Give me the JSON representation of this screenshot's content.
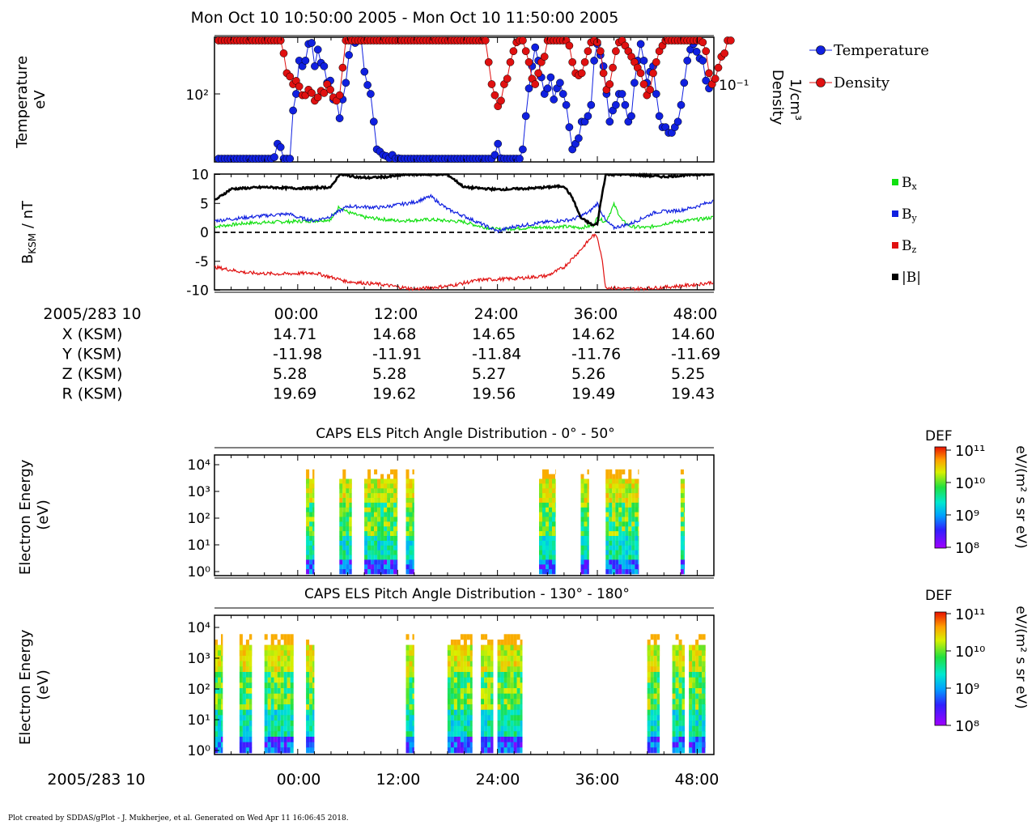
{
  "title": "Mon Oct 10 10:50:00 2005 - Mon Oct 10 11:50:00 2005",
  "footer": "Plot created by SDDAS/gPlot - J. Mukherjee, et al.  Generated on Wed Apr 11 16:06:45 2018.",
  "time_ticks": [
    "00:00",
    "12:00",
    "24:00",
    "36:00",
    "48:00"
  ],
  "ephemeris": {
    "header": "2005/283 10",
    "rows": [
      {
        "label": "X (KSM)",
        "values": [
          "14.71",
          "14.68",
          "14.65",
          "14.62",
          "14.60"
        ]
      },
      {
        "label": "Y (KSM)",
        "values": [
          "-11.98",
          "-11.91",
          "-11.84",
          "-11.76",
          "-11.69"
        ]
      },
      {
        "label": "Z (KSM)",
        "values": [
          "5.28",
          "5.28",
          "5.27",
          "5.26",
          "5.25"
        ]
      },
      {
        "label": "R (KSM)",
        "values": [
          "19.69",
          "19.62",
          "19.56",
          "19.49",
          "19.43"
        ]
      }
    ]
  },
  "bottom_axis_label": "2005/283 10",
  "colors": {
    "temperature": "#1020e0",
    "density": "#e01010",
    "bx": "#10e010",
    "by": "#1020e0",
    "bz": "#e01010",
    "btot": "#000000"
  },
  "chart_data": [
    {
      "type": "scatter",
      "ylabel": [
        "Temperature",
        "eV"
      ],
      "ylabel_right": [
        "Density",
        "1/cm³"
      ],
      "y_tick_left": "10²",
      "y_tick_right": "10⁻¹",
      "legend": [
        "Temperature",
        "Density"
      ],
      "x_range_min": [
        -10,
        50
      ],
      "series": [
        {
          "name": "Temperature",
          "log_values": [
            1.2,
            1.17,
            1.17,
            1.18,
            1.2,
            1.2,
            1.18,
            1.21,
            1.2,
            1.19,
            1.2,
            1.2,
            1.21,
            1.2,
            1.23,
            1.24,
            1.25,
            1.26,
            1.43,
            1.55,
            1.52,
            1.38,
            1.22,
            1.3,
            1.85,
            2.0,
            2.3,
            2.25,
            2.3,
            2.45,
            2.46,
            2.25,
            2.4,
            2.28,
            2.25,
            2.1,
            2.12,
            1.95,
            1.95,
            1.78,
            1.95,
            2.1,
            2.35,
            2.5,
            2.46,
            2.5,
            2.5,
            2.2,
            2.08,
            2.0,
            1.75,
            1.5,
            1.48,
            1.45,
            1.44,
            1.42,
            1.45,
            1.41,
            1.42,
            1.32,
            1.23,
            1.21,
            1.22,
            1.22,
            1.25,
            1.26,
            1.24,
            1.27,
            1.26,
            1.28,
            1.27,
            1.3,
            1.29,
            1.28,
            1.29,
            1.28,
            1.27,
            1.28,
            1.27,
            1.28,
            1.31,
            1.35,
            1.36,
            1.38,
            1.33,
            1.31,
            1.25,
            1.22,
            1.32,
            1.45,
            1.55,
            1.42,
            1.38,
            1.37,
            1.37,
            1.37,
            1.37,
            1.4,
            1.5,
            1.8,
            2.05,
            2.25,
            2.42,
            2.3,
            2.15,
            2.0,
            2.05,
            2.15,
            1.95,
            2.05,
            2.1,
            2.0,
            1.9,
            1.7,
            1.5,
            1.55,
            1.6,
            1.75,
            1.75,
            1.8,
            1.9,
            2.3,
            2.45,
            2.35,
            2.25,
            2.0,
            1.75,
            1.85,
            1.9,
            2.0,
            2.0,
            1.9,
            1.75,
            1.8,
            2.1,
            2.3,
            2.45,
            2.3,
            2.1,
            2.2,
            2.25,
            2.0,
            1.8,
            1.7,
            1.7,
            1.65,
            1.65,
            1.7,
            1.75,
            1.9,
            2.1,
            2.3,
            2.4,
            2.45,
            2.38,
            2.32,
            2.3,
            2.12,
            2.05
          ]
        },
        {
          "name": "Density",
          "log_values": [
            -0.2,
            -0.19,
            -0.2,
            -0.2,
            -0.21,
            -0.2,
            -0.2,
            -0.19,
            -0.21,
            -0.2,
            -0.18,
            -0.2,
            -0.19,
            -0.2,
            -0.21,
            -0.2,
            -0.22,
            -0.23,
            -0.24,
            -0.3,
            -0.46,
            -0.72,
            -0.9,
            -0.93,
            -1.0,
            -0.97,
            -1.02,
            -1.1,
            -1.1,
            -1.05,
            -1.08,
            -1.15,
            -1.12,
            -1.06,
            -1.08,
            -1.0,
            -1.05,
            -1.12,
            -1.15,
            -1.1,
            -0.85,
            -0.6,
            -0.5,
            -0.45,
            -0.38,
            -0.4,
            -0.3,
            -0.27,
            -0.3,
            -0.22,
            -0.21,
            -0.2,
            -0.21,
            -0.22,
            -0.21,
            -0.22,
            -0.23,
            -0.22,
            -0.21,
            -0.2,
            -0.23,
            -0.26,
            -0.24,
            -0.21,
            -0.2,
            -0.19,
            -0.2,
            -0.22,
            -0.2,
            -0.21,
            -0.22,
            -0.2,
            -0.18,
            -0.16,
            -0.15,
            -0.14,
            -0.13,
            -0.14,
            -0.15,
            -0.14,
            -0.12,
            -0.11,
            -0.13,
            -0.15,
            -0.2,
            -0.4,
            -0.6,
            -0.8,
            -1.0,
            -1.1,
            -1.2,
            -1.15,
            -1.0,
            -0.95,
            -0.8,
            -0.7,
            -0.62,
            -0.55,
            -0.6,
            -0.7,
            -0.8,
            -0.95,
            -1.0,
            -0.9,
            -0.8,
            -0.75,
            -0.6,
            -0.55,
            -0.52,
            -0.5,
            -0.5,
            -0.55,
            -0.58,
            -0.65,
            -0.8,
            -0.9,
            -0.92,
            -0.9,
            -0.8,
            -0.7,
            -0.62,
            -0.6,
            -0.62,
            -0.7,
            -0.9,
            -1.05,
            -1.0,
            -0.85,
            -0.7,
            -0.62,
            -0.6,
            -0.65,
            -0.7,
            -0.75,
            -0.8,
            -0.85,
            -0.9,
            -1.0,
            -1.1,
            -1.05,
            -0.9,
            -0.8,
            -0.7,
            -0.65,
            -0.6,
            -0.55,
            -0.5,
            -0.45,
            -0.4,
            -0.38,
            -0.38,
            -0.36,
            -0.35,
            -0.38,
            -0.42,
            -0.5,
            -0.62,
            -0.7,
            -0.9,
            -1.0,
            -0.95,
            -0.85,
            -0.75,
            -0.72,
            -0.6,
            -0.55
          ]
        }
      ]
    },
    {
      "type": "line",
      "ylabel": "B_KSM / nT",
      "ylim": [
        -10,
        10
      ],
      "yticks": [
        "10",
        "5",
        "0",
        "-5",
        "-10"
      ],
      "legend": [
        "Bx",
        "By",
        "Bz",
        "|B|"
      ],
      "series": [
        {
          "name": "Bx",
          "knots": [
            [
              -10,
              1.0
            ],
            [
              -6,
              1.6
            ],
            [
              -2,
              1.8
            ],
            [
              2,
              2.0
            ],
            [
              4,
              2.2
            ],
            [
              5,
              4.5
            ],
            [
              6,
              3.5
            ],
            [
              8,
              2.6
            ],
            [
              12,
              2.0
            ],
            [
              16,
              2.2
            ],
            [
              20,
              1.8
            ],
            [
              22,
              1.0
            ],
            [
              24,
              0.5
            ],
            [
              28,
              0.8
            ],
            [
              32,
              1.0
            ],
            [
              34,
              0.8
            ],
            [
              35.5,
              1.2
            ],
            [
              36,
              2.5
            ],
            [
              37,
              1.8
            ],
            [
              38,
              4.8
            ],
            [
              39,
              2.0
            ],
            [
              40,
              1.0
            ],
            [
              42,
              0.8
            ],
            [
              45,
              1.8
            ],
            [
              48,
              2.2
            ],
            [
              50,
              2.6
            ]
          ]
        },
        {
          "name": "By",
          "knots": [
            [
              -10,
              2.0
            ],
            [
              -6,
              2.6
            ],
            [
              -3,
              3.0
            ],
            [
              -1,
              3.2
            ],
            [
              0,
              2.6
            ],
            [
              2,
              2.0
            ],
            [
              4,
              2.8
            ],
            [
              6,
              4.5
            ],
            [
              10,
              4.3
            ],
            [
              14,
              5.2
            ],
            [
              16,
              6.2
            ],
            [
              18,
              4.0
            ],
            [
              20,
              2.8
            ],
            [
              22,
              1.5
            ],
            [
              24,
              0.2
            ],
            [
              26,
              1.0
            ],
            [
              30,
              1.8
            ],
            [
              33,
              2.2
            ],
            [
              35,
              3.5
            ],
            [
              36,
              5.0
            ],
            [
              37,
              2.0
            ],
            [
              38,
              0.8
            ],
            [
              40,
              1.5
            ],
            [
              43,
              3.5
            ],
            [
              46,
              3.8
            ],
            [
              48,
              4.5
            ],
            [
              50,
              5.5
            ]
          ]
        },
        {
          "name": "Bz",
          "knots": [
            [
              -10,
              -6.0
            ],
            [
              -6,
              -7.0
            ],
            [
              -2,
              -7.2
            ],
            [
              2,
              -7.0
            ],
            [
              6,
              -8.5
            ],
            [
              10,
              -9.0
            ],
            [
              14,
              -9.8
            ],
            [
              18,
              -9.3
            ],
            [
              22,
              -8.2
            ],
            [
              26,
              -8.0
            ],
            [
              30,
              -7.5
            ],
            [
              32,
              -6.0
            ],
            [
              34,
              -3.0
            ],
            [
              35.5,
              -0.5
            ],
            [
              36,
              -0.8
            ],
            [
              36.5,
              -4.0
            ],
            [
              37,
              -9.5
            ],
            [
              40,
              -9.8
            ],
            [
              44,
              -9.5
            ],
            [
              48,
              -9.0
            ],
            [
              50,
              -8.6
            ]
          ]
        },
        {
          "name": "|B|",
          "knots": [
            [
              -10,
              5.5
            ],
            [
              -8,
              7.5
            ],
            [
              -4,
              7.8
            ],
            [
              0,
              7.6
            ],
            [
              4,
              7.8
            ],
            [
              5,
              10.0
            ],
            [
              8,
              9.4
            ],
            [
              11,
              9.6
            ],
            [
              13,
              10.0
            ],
            [
              18,
              10.0
            ],
            [
              20,
              7.8
            ],
            [
              24,
              7.4
            ],
            [
              28,
              7.6
            ],
            [
              32,
              8.0
            ],
            [
              33,
              6.0
            ],
            [
              34,
              2.5
            ],
            [
              35.5,
              1.2
            ],
            [
              36,
              1.5
            ],
            [
              36.5,
              6.0
            ],
            [
              37,
              10.0
            ],
            [
              40,
              10.0
            ],
            [
              44,
              9.6
            ],
            [
              48,
              10.0
            ],
            [
              50,
              10.0
            ]
          ]
        }
      ]
    },
    {
      "type": "heatmap",
      "title": "CAPS ELS Pitch Angle Distribution - 0° - 50°",
      "ylabel": [
        "Electron Energy",
        "(eV)"
      ],
      "yticks": [
        "10⁴",
        "10³",
        "10²",
        "10¹",
        "10⁰"
      ],
      "colorbar": {
        "label": "DEF",
        "unit": "eV/(m² s sr eV)",
        "ticks": [
          "10¹¹",
          "10¹⁰",
          "10⁹",
          "10⁸"
        ]
      },
      "data_blocks_minutes": [
        [
          1,
          2
        ],
        [
          5,
          6.5
        ],
        [
          8,
          12
        ],
        [
          13,
          14
        ],
        [
          29,
          31
        ],
        [
          34,
          35
        ],
        [
          37,
          41
        ],
        [
          46,
          46.5
        ]
      ]
    },
    {
      "type": "heatmap",
      "title": "CAPS ELS Pitch Angle Distribution - 130° - 180°",
      "ylabel": [
        "Electron Energy",
        "(eV)"
      ],
      "yticks": [
        "10⁴",
        "10³",
        "10²",
        "10¹",
        "10⁰"
      ],
      "colorbar": {
        "label": "DEF",
        "unit": "eV/(m² s sr eV)",
        "ticks": [
          "10¹¹",
          "10¹⁰",
          "10⁹",
          "10⁸"
        ]
      },
      "data_blocks_minutes": [
        [
          -10,
          -9
        ],
        [
          -7,
          -5.5
        ],
        [
          -4,
          -0.5
        ],
        [
          1,
          2
        ],
        [
          13,
          14
        ],
        [
          18,
          21
        ],
        [
          22,
          23.5
        ],
        [
          24,
          27
        ],
        [
          42,
          43.5
        ],
        [
          45,
          46.5
        ],
        [
          47,
          49
        ]
      ]
    }
  ]
}
